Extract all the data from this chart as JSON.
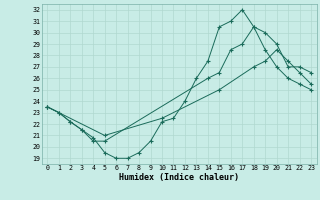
{
  "xlabel": "Humidex (Indice chaleur)",
  "bg_color": "#c8ece6",
  "line_color": "#1a6b5a",
  "grid_color": "#b0d8d0",
  "xlim": [
    -0.5,
    23.5
  ],
  "ylim": [
    18.5,
    32.5
  ],
  "yticks": [
    19,
    20,
    21,
    22,
    23,
    24,
    25,
    26,
    27,
    28,
    29,
    30,
    31,
    32
  ],
  "xticks": [
    0,
    1,
    2,
    3,
    4,
    5,
    6,
    7,
    8,
    9,
    10,
    11,
    12,
    13,
    14,
    15,
    16,
    17,
    18,
    19,
    20,
    21,
    22,
    23
  ],
  "line1_x": [
    0,
    1,
    2,
    3,
    4,
    5,
    6,
    7,
    8,
    9,
    10,
    11,
    12,
    13,
    14,
    15,
    16,
    17,
    18,
    19,
    20,
    21,
    22,
    23
  ],
  "line1_y": [
    23.5,
    23.0,
    22.2,
    21.5,
    20.8,
    19.5,
    19.0,
    19.0,
    19.5,
    20.5,
    22.2,
    22.5,
    24.0,
    26.0,
    27.5,
    30.5,
    31.0,
    32.0,
    30.5,
    30.0,
    29.0,
    27.0,
    27.0,
    26.5
  ],
  "line2_x": [
    0,
    1,
    2,
    3,
    4,
    5,
    14,
    15,
    16,
    17,
    18,
    19,
    20,
    21,
    22,
    23
  ],
  "line2_y": [
    23.5,
    23.0,
    22.2,
    21.5,
    20.5,
    20.5,
    26.0,
    26.5,
    28.5,
    29.0,
    30.5,
    28.5,
    27.0,
    26.0,
    25.5,
    25.0
  ],
  "line3_x": [
    0,
    5,
    10,
    15,
    18,
    19,
    20,
    21,
    22,
    23
  ],
  "line3_y": [
    23.5,
    21.0,
    22.5,
    25.0,
    27.0,
    27.5,
    28.5,
    27.5,
    26.5,
    25.5
  ]
}
